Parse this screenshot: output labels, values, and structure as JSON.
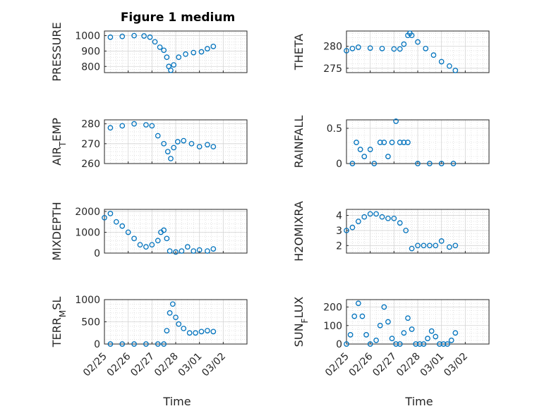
{
  "figure": {
    "title": "Figure 1 medium",
    "xlabel": "Time",
    "marker_color": "#0072BD"
  },
  "chart_data": [
    {
      "type": "scatter",
      "name": "PRESSURE",
      "ylabel": "PRESSURE",
      "xlim": [
        "2020-02-25",
        "2020-03-02"
      ],
      "ylim": [
        760,
        1030
      ],
      "yticks": [
        800,
        900,
        1000
      ],
      "xticks": [
        "02/25",
        "02/26",
        "02/27",
        "02/28",
        "03/01",
        "03/02"
      ],
      "x": [
        "2020-02-25T06:00",
        "2020-02-25T18:00",
        "2020-02-26T06:00",
        "2020-02-26T16:00",
        "2020-02-26T22:00",
        "2020-02-27T03:00",
        "2020-02-27T08:00",
        "2020-02-27T12:00",
        "2020-02-27T15:00",
        "2020-02-27T17:00",
        "2020-02-27T19:00",
        "2020-02-27T22:00",
        "2020-02-28T03:00",
        "2020-02-28T10:00",
        "2020-02-28T18:00",
        "2020-02-29T02:00",
        "2020-02-29T08:00",
        "2020-02-29T14:00"
      ],
      "y": [
        990,
        995,
        1000,
        998,
        990,
        960,
        925,
        905,
        860,
        800,
        775,
        810,
        860,
        880,
        890,
        895,
        915,
        930
      ],
      "show_xticklabels": false
    },
    {
      "type": "scatter",
      "name": "THETA",
      "ylabel": "THETA",
      "xlim": [
        "2020-02-25",
        "2020-03-02"
      ],
      "ylim": [
        274,
        283.5
      ],
      "yticks": [
        275,
        280
      ],
      "xticks": [
        "02/25",
        "02/26",
        "02/27",
        "02/28",
        "03/01",
        "03/02"
      ],
      "x": [
        "2020-02-25T00:00",
        "2020-02-25T06:00",
        "2020-02-25T12:00",
        "2020-02-26T00:00",
        "2020-02-26T12:00",
        "2020-02-27T00:00",
        "2020-02-27T06:00",
        "2020-02-27T10:00",
        "2020-02-27T14:00",
        "2020-02-27T16:00",
        "2020-02-27T18:00",
        "2020-02-28T00:00",
        "2020-02-28T08:00",
        "2020-02-28T16:00",
        "2020-02-29T00:00",
        "2020-02-29T08:00",
        "2020-02-29T14:00"
      ],
      "y": [
        279,
        279.5,
        279.8,
        279.6,
        279.5,
        279.4,
        279.4,
        280.5,
        282.5,
        283,
        282.5,
        281,
        279.5,
        278,
        276.5,
        275.5,
        274.5
      ],
      "show_xticklabels": false
    },
    {
      "type": "scatter",
      "name": "AIR_TEMP",
      "ylabel": "AIR_TEMP",
      "xlim": [
        "2020-02-25",
        "2020-03-02"
      ],
      "ylim": [
        260,
        282
      ],
      "yticks": [
        260,
        270,
        280
      ],
      "xticks": [
        "02/25",
        "02/26",
        "02/27",
        "02/28",
        "03/01",
        "03/02"
      ],
      "x": [
        "2020-02-25T06:00",
        "2020-02-25T18:00",
        "2020-02-26T06:00",
        "2020-02-26T18:00",
        "2020-02-27T00:00",
        "2020-02-27T06:00",
        "2020-02-27T12:00",
        "2020-02-27T16:00",
        "2020-02-27T19:00",
        "2020-02-27T22:00",
        "2020-02-28T02:00",
        "2020-02-28T08:00",
        "2020-02-28T16:00",
        "2020-02-29T00:00",
        "2020-02-29T08:00",
        "2020-02-29T14:00"
      ],
      "y": [
        278,
        279,
        280,
        279.5,
        279,
        274,
        270,
        266,
        262.5,
        268,
        271,
        271.5,
        270,
        268.5,
        269.5,
        268.5
      ],
      "show_xticklabels": false
    },
    {
      "type": "scatter",
      "name": "RAINFALL",
      "ylabel": "RAINFALL",
      "xlim": [
        "2020-02-25",
        "2020-03-02"
      ],
      "ylim": [
        0,
        0.62
      ],
      "yticks": [
        0,
        0.5
      ],
      "xticks": [
        "02/25",
        "02/26",
        "02/27",
        "02/28",
        "03/01",
        "03/02"
      ],
      "x": [
        "2020-02-25T06:00",
        "2020-02-25T10:00",
        "2020-02-25T14:00",
        "2020-02-25T18:00",
        "2020-02-26T00:00",
        "2020-02-26T04:00",
        "2020-02-26T10:00",
        "2020-02-26T14:00",
        "2020-02-26T18:00",
        "2020-02-26T22:00",
        "2020-02-27T02:00",
        "2020-02-27T06:00",
        "2020-02-27T10:00",
        "2020-02-27T14:00",
        "2020-02-28T00:00",
        "2020-02-28T12:00",
        "2020-02-29T00:00",
        "2020-02-29T12:00"
      ],
      "y": [
        0,
        0.3,
        0.2,
        0.1,
        0.2,
        0,
        0.3,
        0.3,
        0.1,
        0.3,
        0.6,
        0.3,
        0.3,
        0.3,
        0,
        0,
        0,
        0
      ],
      "show_xticklabels": false
    },
    {
      "type": "scatter",
      "name": "MIXDEPTH",
      "ylabel": "MIXDEPTH",
      "xlim": [
        "2020-02-25",
        "2020-03-02"
      ],
      "ylim": [
        0,
        2100
      ],
      "yticks": [
        0,
        1000,
        2000
      ],
      "xticks": [
        "02/25",
        "02/26",
        "02/27",
        "02/28",
        "03/01",
        "03/02"
      ],
      "x": [
        "2020-02-25T00:00",
        "2020-02-25T06:00",
        "2020-02-25T12:00",
        "2020-02-25T18:00",
        "2020-02-26T00:00",
        "2020-02-26T06:00",
        "2020-02-26T12:00",
        "2020-02-26T18:00",
        "2020-02-27T00:00",
        "2020-02-27T06:00",
        "2020-02-27T09:00",
        "2020-02-27T12:00",
        "2020-02-27T15:00",
        "2020-02-27T18:00",
        "2020-02-28T00:00",
        "2020-02-28T06:00",
        "2020-02-28T12:00",
        "2020-02-28T18:00",
        "2020-02-29T00:00",
        "2020-02-29T08:00",
        "2020-02-29T14:00"
      ],
      "y": [
        1700,
        1900,
        1500,
        1300,
        1000,
        700,
        400,
        300,
        400,
        600,
        1000,
        1100,
        700,
        100,
        50,
        100,
        300,
        100,
        150,
        100,
        200
      ],
      "show_xticklabels": false
    },
    {
      "type": "scatter",
      "name": "H2OMIXRA",
      "ylabel": "H2OMIXRA",
      "xlim": [
        "2020-02-25",
        "2020-03-02"
      ],
      "ylim": [
        1.5,
        4.4
      ],
      "yticks": [
        2,
        3,
        4
      ],
      "xticks": [
        "02/25",
        "02/26",
        "02/27",
        "02/28",
        "03/01",
        "03/02"
      ],
      "x": [
        "2020-02-25T00:00",
        "2020-02-25T06:00",
        "2020-02-25T12:00",
        "2020-02-25T18:00",
        "2020-02-26T00:00",
        "2020-02-26T06:00",
        "2020-02-26T12:00",
        "2020-02-26T18:00",
        "2020-02-27T00:00",
        "2020-02-27T06:00",
        "2020-02-27T12:00",
        "2020-02-27T18:00",
        "2020-02-28T00:00",
        "2020-02-28T06:00",
        "2020-02-28T12:00",
        "2020-02-28T18:00",
        "2020-02-29T00:00",
        "2020-02-29T08:00",
        "2020-02-29T14:00"
      ],
      "y": [
        3.0,
        3.2,
        3.6,
        3.9,
        4.1,
        4.1,
        3.9,
        3.8,
        3.8,
        3.5,
        3.0,
        1.8,
        2.0,
        2.0,
        2.0,
        2.0,
        2.3,
        1.9,
        2.0
      ],
      "show_xticklabels": false
    },
    {
      "type": "scatter",
      "name": "TERR_MSL",
      "ylabel": "TERR_MSL",
      "xlim": [
        "2020-02-25",
        "2020-03-02"
      ],
      "ylim": [
        0,
        1000
      ],
      "yticks": [
        0,
        500,
        1000
      ],
      "xticks": [
        "02/25",
        "02/26",
        "02/27",
        "02/28",
        "03/01",
        "03/02"
      ],
      "x": [
        "2020-02-25T06:00",
        "2020-02-25T18:00",
        "2020-02-26T06:00",
        "2020-02-26T18:00",
        "2020-02-27T06:00",
        "2020-02-27T12:00",
        "2020-02-27T15:00",
        "2020-02-27T18:00",
        "2020-02-27T21:00",
        "2020-02-28T00:00",
        "2020-02-28T03:00",
        "2020-02-28T08:00",
        "2020-02-28T14:00",
        "2020-02-28T20:00",
        "2020-02-29T02:00",
        "2020-02-29T08:00",
        "2020-02-29T14:00"
      ],
      "y": [
        0,
        0,
        0,
        0,
        0,
        0,
        300,
        700,
        900,
        600,
        450,
        350,
        250,
        250,
        280,
        300,
        280
      ],
      "show_xticklabels": true
    },
    {
      "type": "scatter",
      "name": "SUN_FLUX",
      "ylabel": "SUN_FLUX",
      "xlim": [
        "2020-02-25",
        "2020-03-02"
      ],
      "ylim": [
        0,
        240
      ],
      "yticks": [
        0,
        100,
        200
      ],
      "xticks": [
        "02/25",
        "02/26",
        "02/27",
        "02/28",
        "03/01",
        "03/02"
      ],
      "x": [
        "2020-02-25T00:00",
        "2020-02-25T04:00",
        "2020-02-25T08:00",
        "2020-02-25T12:00",
        "2020-02-25T16:00",
        "2020-02-25T20:00",
        "2020-02-26T00:00",
        "2020-02-26T06:00",
        "2020-02-26T10:00",
        "2020-02-26T14:00",
        "2020-02-26T18:00",
        "2020-02-26T22:00",
        "2020-02-27T02:00",
        "2020-02-27T06:00",
        "2020-02-27T10:00",
        "2020-02-27T14:00",
        "2020-02-27T18:00",
        "2020-02-27T22:00",
        "2020-02-28T02:00",
        "2020-02-28T06:00",
        "2020-02-28T10:00",
        "2020-02-28T14:00",
        "2020-02-28T18:00",
        "2020-02-28T22:00",
        "2020-02-29T02:00",
        "2020-02-29T06:00",
        "2020-02-29T10:00",
        "2020-02-29T14:00"
      ],
      "y": [
        0,
        50,
        150,
        220,
        150,
        50,
        0,
        20,
        100,
        200,
        120,
        30,
        0,
        0,
        60,
        140,
        80,
        0,
        0,
        0,
        30,
        70,
        40,
        0,
        0,
        0,
        20,
        60
      ],
      "show_xticklabels": true
    }
  ]
}
